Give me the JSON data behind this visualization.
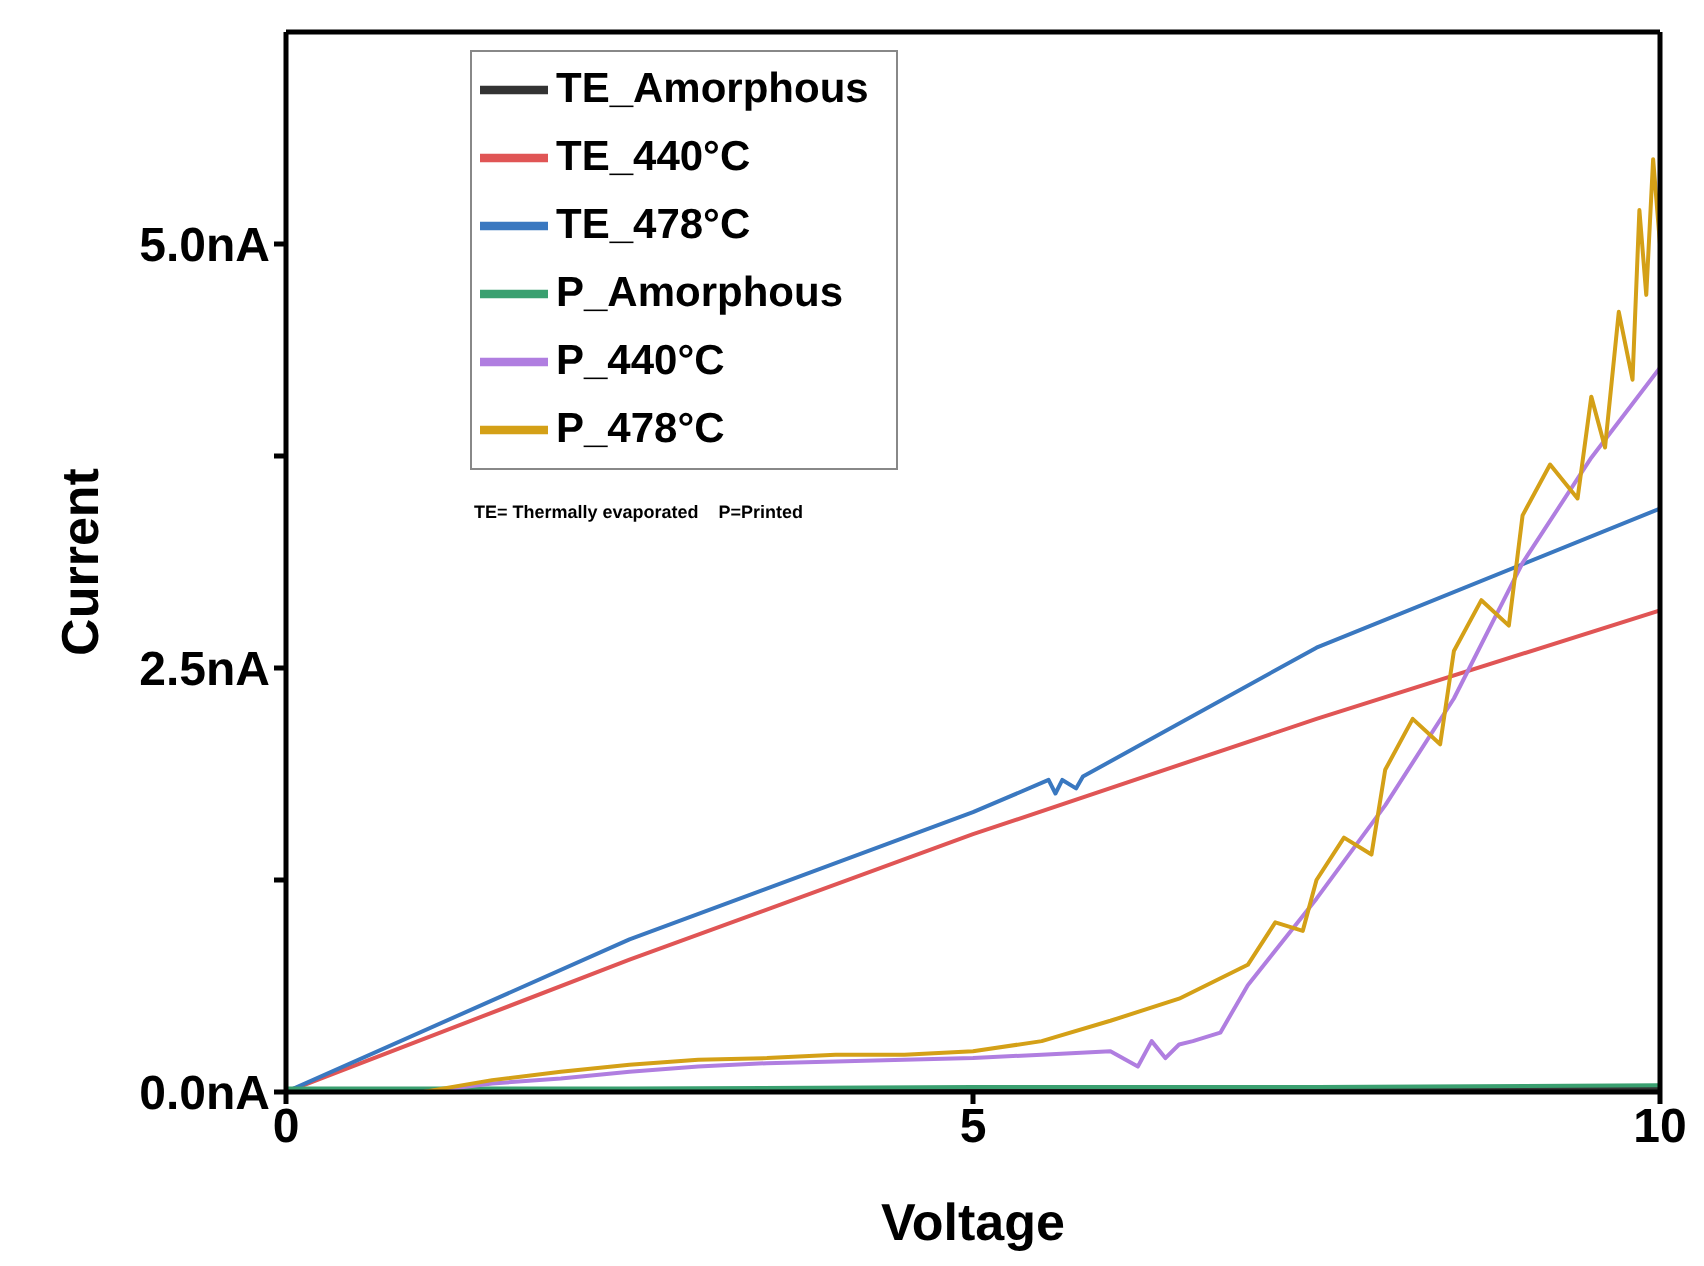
{
  "chart_data": {
    "type": "line",
    "xlabel": "Voltage",
    "ylabel": "Current",
    "xlim": [
      0,
      10
    ],
    "xticks": [
      0,
      5,
      10
    ],
    "ylim": [
      0,
      6.25
    ],
    "yticks": [
      {
        "value": 0,
        "label": "0.0nA"
      },
      {
        "value": 1.25,
        "label": null
      },
      {
        "value": 2.5,
        "label": "2.5nA"
      },
      {
        "value": 3.75,
        "label": null
      },
      {
        "value": 5,
        "label": "5.0nA"
      }
    ],
    "legend": "top left",
    "grid": false,
    "marker": "none",
    "line_style": "solid",
    "annotations": [
      "TE= Thermally evaporated    P=Printed"
    ],
    "series": [
      {
        "name": "TE_Amorphous",
        "color": "#333333",
        "x": [
          0,
          2.5,
          5,
          7.5,
          10
        ],
        "values": [
          0,
          0.01,
          0.01,
          0.02,
          0.02
        ]
      },
      {
        "name": "TE_440°C",
        "color": "#e05555",
        "x": [
          0,
          2.5,
          5,
          7.5,
          10
        ],
        "values": [
          0,
          0.78,
          1.52,
          2.2,
          2.84
        ]
      },
      {
        "name": "TE_478°C",
        "color": "#3a78c0",
        "x": [
          0,
          2.5,
          5,
          5.55,
          5.6,
          5.65,
          5.75,
          5.8,
          7.5,
          10
        ],
        "values": [
          0,
          0.9,
          1.65,
          1.84,
          1.76,
          1.84,
          1.79,
          1.86,
          2.62,
          3.44
        ]
      },
      {
        "name": "P_Amorphous",
        "color": "#3aa070",
        "x": [
          0,
          2.5,
          5,
          7.5,
          10
        ],
        "values": [
          0.02,
          0.02,
          0.03,
          0.03,
          0.04
        ]
      },
      {
        "name": "P_440°C",
        "color": "#b07ee0",
        "x": [
          0,
          1,
          1.5,
          2,
          2.5,
          3,
          3.5,
          4,
          4.5,
          5,
          5.5,
          6,
          6.2,
          6.3,
          6.4,
          6.5,
          6.6,
          6.8,
          7,
          7.5,
          8,
          8.5,
          9,
          9.5,
          10
        ],
        "values": [
          0,
          0,
          0.05,
          0.08,
          0.12,
          0.15,
          0.17,
          0.18,
          0.19,
          0.2,
          0.22,
          0.24,
          0.15,
          0.3,
          0.2,
          0.28,
          0.3,
          0.35,
          0.63,
          1.14,
          1.69,
          2.32,
          3.12,
          3.74,
          4.27
        ]
      },
      {
        "name": "P_478°C",
        "color": "#d4a017",
        "x": [
          0,
          1,
          1.5,
          2,
          2.5,
          3,
          3.5,
          4,
          4.5,
          5,
          5.5,
          6,
          6.5,
          7,
          7.2,
          7.4,
          7.5,
          7.7,
          7.9,
          8,
          8.2,
          8.4,
          8.5,
          8.7,
          8.9,
          9,
          9.2,
          9.4,
          9.5,
          9.6,
          9.7,
          9.8,
          9.85,
          9.9,
          9.95,
          10
        ],
        "values": [
          0,
          0,
          0.07,
          0.12,
          0.16,
          0.19,
          0.2,
          0.22,
          0.22,
          0.24,
          0.3,
          0.42,
          0.55,
          0.75,
          1.0,
          0.95,
          1.25,
          1.5,
          1.4,
          1.9,
          2.2,
          2.05,
          2.6,
          2.9,
          2.75,
          3.4,
          3.7,
          3.5,
          4.1,
          3.8,
          4.6,
          4.2,
          5.2,
          4.7,
          5.5,
          5.0
        ]
      }
    ]
  }
}
